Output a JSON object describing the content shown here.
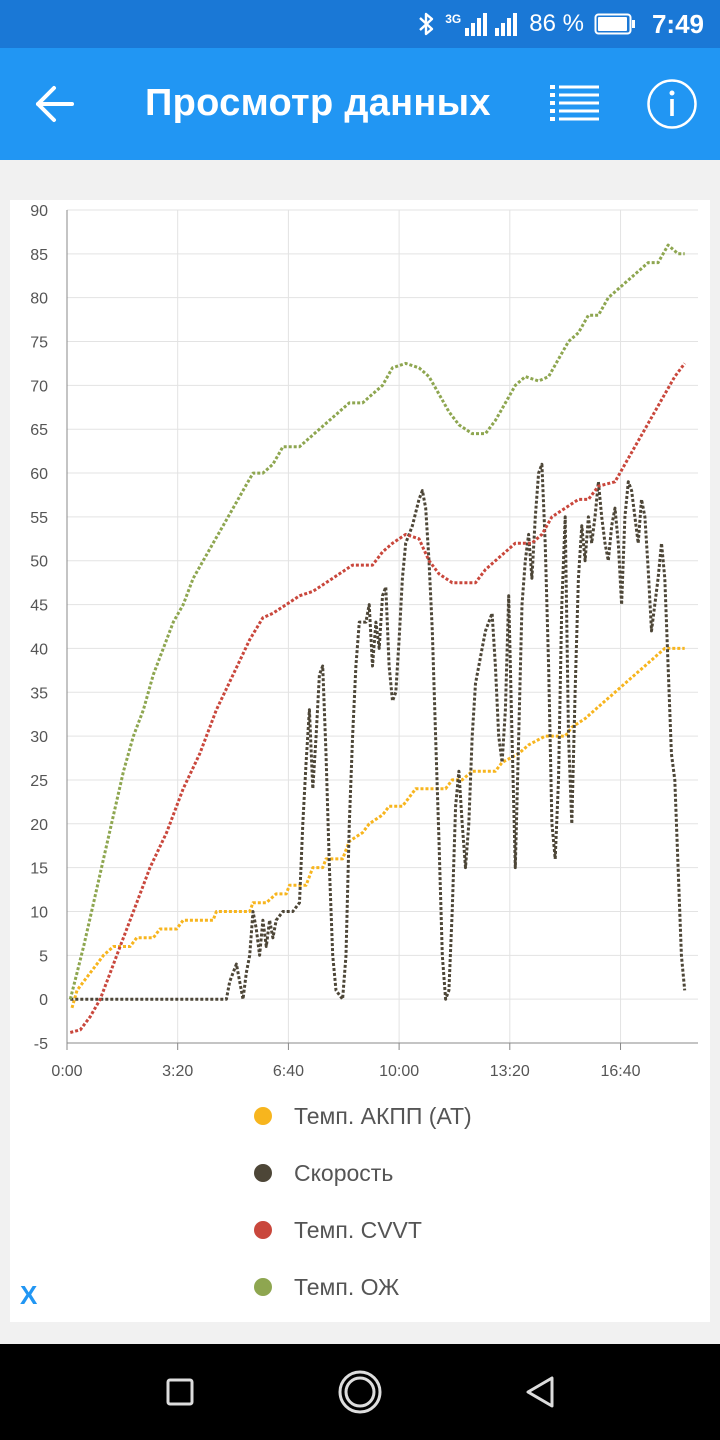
{
  "status_bar": {
    "network": "3G",
    "battery_percent": "86 %",
    "time": "7:49",
    "icons": [
      "bluetooth-icon",
      "signal-icon",
      "battery-icon"
    ]
  },
  "app_bar": {
    "title": "Просмотр данных",
    "icons": [
      "back-arrow-icon",
      "list-icon",
      "info-icon"
    ]
  },
  "colors": {
    "status_bar": "#1a78d6",
    "app_bar": "#2196f3",
    "series_at": "#f7b51e",
    "series_speed": "#4d4637",
    "series_cvvt": "#c9473c",
    "series_coolant": "#8ea650"
  },
  "chart_data": {
    "type": "line",
    "x_unit": "minutes",
    "xlim": [
      0,
      19
    ],
    "ylim": [
      -5,
      90
    ],
    "grid": true,
    "legend_placement": "bottom",
    "y_ticks": [
      90,
      85,
      80,
      75,
      70,
      65,
      60,
      55,
      50,
      45,
      40,
      35,
      30,
      25,
      20,
      15,
      10,
      5,
      0,
      -5
    ],
    "x_ticks": [
      {
        "value": 0,
        "label": "0:00"
      },
      {
        "value": 3.333,
        "label": "3:20"
      },
      {
        "value": 6.667,
        "label": "6:40"
      },
      {
        "value": 10,
        "label": "10:00"
      },
      {
        "value": 13.333,
        "label": "13:20"
      },
      {
        "value": 16.667,
        "label": "16:40"
      }
    ],
    "series": [
      {
        "name": "Темп. АКПП (АТ)",
        "color": "#f7b51e",
        "points": [
          [
            0.15,
            -1
          ],
          [
            0.3,
            1
          ],
          [
            0.5,
            2
          ],
          [
            0.7,
            3
          ],
          [
            0.9,
            4
          ],
          [
            1.1,
            5
          ],
          [
            1.4,
            6
          ],
          [
            1.9,
            6
          ],
          [
            2.1,
            7
          ],
          [
            2.6,
            7
          ],
          [
            2.8,
            8
          ],
          [
            3.3,
            8
          ],
          [
            3.5,
            9
          ],
          [
            4.4,
            9
          ],
          [
            4.5,
            10
          ],
          [
            5.5,
            10
          ],
          [
            5.6,
            11
          ],
          [
            6.0,
            11
          ],
          [
            6.3,
            12
          ],
          [
            6.6,
            12
          ],
          [
            6.7,
            13
          ],
          [
            7.2,
            13
          ],
          [
            7.4,
            15
          ],
          [
            7.7,
            15
          ],
          [
            7.8,
            16
          ],
          [
            8.3,
            16
          ],
          [
            8.5,
            18
          ],
          [
            8.9,
            19
          ],
          [
            9.1,
            20
          ],
          [
            9.5,
            21
          ],
          [
            9.7,
            22
          ],
          [
            10.1,
            22
          ],
          [
            10.3,
            23
          ],
          [
            10.5,
            24
          ],
          [
            11.4,
            24
          ],
          [
            11.6,
            25
          ],
          [
            11.9,
            25
          ],
          [
            12.2,
            26
          ],
          [
            12.9,
            26
          ],
          [
            13.1,
            27
          ],
          [
            13.6,
            28
          ],
          [
            13.9,
            29
          ],
          [
            14.4,
            30
          ],
          [
            15.0,
            30
          ],
          [
            15.2,
            31
          ],
          [
            15.6,
            32
          ],
          [
            15.9,
            33
          ],
          [
            16.2,
            34
          ],
          [
            16.5,
            35
          ],
          [
            16.8,
            36
          ],
          [
            17.1,
            37
          ],
          [
            17.4,
            38
          ],
          [
            17.7,
            39
          ],
          [
            18.0,
            40
          ],
          [
            18.6,
            40
          ]
        ]
      },
      {
        "name": "Скорость",
        "color": "#4d4637",
        "points": [
          [
            0.1,
            0
          ],
          [
            4.8,
            0
          ],
          [
            4.9,
            2
          ],
          [
            5.1,
            4
          ],
          [
            5.3,
            0
          ],
          [
            5.4,
            3
          ],
          [
            5.5,
            5
          ],
          [
            5.6,
            10
          ],
          [
            5.7,
            8
          ],
          [
            5.8,
            5
          ],
          [
            5.9,
            9
          ],
          [
            6.0,
            6
          ],
          [
            6.1,
            9
          ],
          [
            6.2,
            7
          ],
          [
            6.3,
            9
          ],
          [
            6.5,
            10
          ],
          [
            6.8,
            10
          ],
          [
            7.0,
            11
          ],
          [
            7.1,
            20
          ],
          [
            7.2,
            27
          ],
          [
            7.3,
            33
          ],
          [
            7.4,
            24
          ],
          [
            7.5,
            30
          ],
          [
            7.6,
            37
          ],
          [
            7.7,
            38
          ],
          [
            7.8,
            28
          ],
          [
            7.9,
            15
          ],
          [
            8.0,
            5
          ],
          [
            8.1,
            1
          ],
          [
            8.3,
            0
          ],
          [
            8.4,
            5
          ],
          [
            8.5,
            20
          ],
          [
            8.6,
            30
          ],
          [
            8.7,
            38
          ],
          [
            8.8,
            43
          ],
          [
            9.0,
            43
          ],
          [
            9.1,
            45
          ],
          [
            9.2,
            38
          ],
          [
            9.3,
            43
          ],
          [
            9.4,
            40
          ],
          [
            9.5,
            46
          ],
          [
            9.6,
            47
          ],
          [
            9.7,
            38
          ],
          [
            9.8,
            34
          ],
          [
            9.9,
            35
          ],
          [
            10.0,
            41
          ],
          [
            10.1,
            48
          ],
          [
            10.2,
            52
          ],
          [
            10.4,
            54
          ],
          [
            10.6,
            57
          ],
          [
            10.7,
            58
          ],
          [
            10.8,
            56
          ],
          [
            10.9,
            50
          ],
          [
            11.0,
            42
          ],
          [
            11.1,
            30
          ],
          [
            11.2,
            18
          ],
          [
            11.3,
            5
          ],
          [
            11.4,
            0
          ],
          [
            11.5,
            1
          ],
          [
            11.6,
            10
          ],
          [
            11.7,
            22
          ],
          [
            11.8,
            26
          ],
          [
            11.9,
            20
          ],
          [
            12.0,
            15
          ],
          [
            12.1,
            20
          ],
          [
            12.2,
            30
          ],
          [
            12.3,
            36
          ],
          [
            12.4,
            38
          ],
          [
            12.5,
            40
          ],
          [
            12.6,
            42
          ],
          [
            12.7,
            43
          ],
          [
            12.8,
            44
          ],
          [
            12.9,
            38
          ],
          [
            13.0,
            30
          ],
          [
            13.1,
            27
          ],
          [
            13.2,
            33
          ],
          [
            13.3,
            46
          ],
          [
            13.4,
            30
          ],
          [
            13.5,
            15
          ],
          [
            13.6,
            30
          ],
          [
            13.7,
            45
          ],
          [
            13.8,
            50
          ],
          [
            13.9,
            53
          ],
          [
            14.0,
            48
          ],
          [
            14.1,
            55
          ],
          [
            14.2,
            60
          ],
          [
            14.3,
            61
          ],
          [
            14.4,
            52
          ],
          [
            14.5,
            38
          ],
          [
            14.6,
            20
          ],
          [
            14.7,
            16
          ],
          [
            14.8,
            25
          ],
          [
            14.9,
            45
          ],
          [
            15.0,
            55
          ],
          [
            15.1,
            30
          ],
          [
            15.2,
            20
          ],
          [
            15.3,
            35
          ],
          [
            15.4,
            48
          ],
          [
            15.5,
            54
          ],
          [
            15.6,
            50
          ],
          [
            15.7,
            55
          ],
          [
            15.8,
            52
          ],
          [
            15.9,
            55
          ],
          [
            16.0,
            59
          ],
          [
            16.1,
            55
          ],
          [
            16.2,
            52
          ],
          [
            16.3,
            50
          ],
          [
            16.4,
            54
          ],
          [
            16.5,
            56
          ],
          [
            16.6,
            52
          ],
          [
            16.7,
            45
          ],
          [
            16.8,
            55
          ],
          [
            16.9,
            59
          ],
          [
            17.0,
            58
          ],
          [
            17.1,
            55
          ],
          [
            17.2,
            52
          ],
          [
            17.3,
            57
          ],
          [
            17.4,
            55
          ],
          [
            17.5,
            49
          ],
          [
            17.6,
            42
          ],
          [
            17.7,
            45
          ],
          [
            17.8,
            48
          ],
          [
            17.9,
            52
          ],
          [
            18.0,
            48
          ],
          [
            18.1,
            38
          ],
          [
            18.2,
            28
          ],
          [
            18.3,
            25
          ],
          [
            18.4,
            15
          ],
          [
            18.5,
            5
          ],
          [
            18.6,
            1
          ]
        ]
      },
      {
        "name": "Темп. CVVT",
        "color": "#c9473c",
        "points": [
          [
            0.1,
            -3.8
          ],
          [
            0.4,
            -3.5
          ],
          [
            0.7,
            -2
          ],
          [
            1.0,
            0
          ],
          [
            1.3,
            3
          ],
          [
            1.6,
            6
          ],
          [
            2.0,
            10
          ],
          [
            2.5,
            15
          ],
          [
            3.0,
            19
          ],
          [
            3.5,
            24
          ],
          [
            4.0,
            28
          ],
          [
            4.5,
            33
          ],
          [
            5.0,
            37
          ],
          [
            5.5,
            41
          ],
          [
            5.9,
            43.5
          ],
          [
            6.2,
            44
          ],
          [
            6.6,
            45
          ],
          [
            7.0,
            46
          ],
          [
            7.4,
            46.5
          ],
          [
            7.8,
            47.5
          ],
          [
            8.2,
            48.5
          ],
          [
            8.6,
            49.5
          ],
          [
            9.2,
            49.5
          ],
          [
            9.5,
            51
          ],
          [
            9.8,
            52
          ],
          [
            10.2,
            53
          ],
          [
            10.6,
            52.5
          ],
          [
            10.9,
            50
          ],
          [
            11.2,
            48.5
          ],
          [
            11.6,
            47.5
          ],
          [
            12.3,
            47.5
          ],
          [
            12.6,
            49
          ],
          [
            12.9,
            50
          ],
          [
            13.2,
            51
          ],
          [
            13.5,
            52
          ],
          [
            14.0,
            52
          ],
          [
            14.3,
            53
          ],
          [
            14.6,
            55
          ],
          [
            15.0,
            56
          ],
          [
            15.4,
            57
          ],
          [
            15.7,
            57
          ],
          [
            16.0,
            58.5
          ],
          [
            16.5,
            59
          ],
          [
            16.8,
            61
          ],
          [
            17.1,
            63
          ],
          [
            17.4,
            65
          ],
          [
            17.7,
            67
          ],
          [
            18.0,
            69
          ],
          [
            18.3,
            71
          ],
          [
            18.6,
            72.5
          ]
        ]
      },
      {
        "name": "Темп. ОЖ",
        "color": "#8ea650",
        "points": [
          [
            0.1,
            0
          ],
          [
            0.3,
            3
          ],
          [
            0.5,
            6
          ],
          [
            0.8,
            11
          ],
          [
            1.1,
            16
          ],
          [
            1.4,
            21
          ],
          [
            1.7,
            26
          ],
          [
            2.0,
            30
          ],
          [
            2.3,
            33
          ],
          [
            2.6,
            37
          ],
          [
            2.9,
            40
          ],
          [
            3.2,
            43
          ],
          [
            3.5,
            45
          ],
          [
            3.8,
            48
          ],
          [
            4.1,
            50
          ],
          [
            4.4,
            52
          ],
          [
            4.7,
            54
          ],
          [
            5.0,
            56
          ],
          [
            5.3,
            58
          ],
          [
            5.6,
            60
          ],
          [
            5.9,
            60
          ],
          [
            6.2,
            61
          ],
          [
            6.5,
            63
          ],
          [
            7.0,
            63
          ],
          [
            7.3,
            64
          ],
          [
            7.6,
            65
          ],
          [
            7.9,
            66
          ],
          [
            8.2,
            67
          ],
          [
            8.5,
            68
          ],
          [
            8.9,
            68
          ],
          [
            9.2,
            69
          ],
          [
            9.5,
            70
          ],
          [
            9.8,
            72
          ],
          [
            10.2,
            72.5
          ],
          [
            10.6,
            72
          ],
          [
            10.9,
            71
          ],
          [
            11.2,
            69
          ],
          [
            11.5,
            67
          ],
          [
            11.8,
            65.5
          ],
          [
            12.2,
            64.5
          ],
          [
            12.6,
            64.5
          ],
          [
            12.9,
            66
          ],
          [
            13.2,
            68
          ],
          [
            13.5,
            70
          ],
          [
            13.8,
            71
          ],
          [
            14.2,
            70.5
          ],
          [
            14.5,
            71
          ],
          [
            14.8,
            73
          ],
          [
            15.1,
            75
          ],
          [
            15.4,
            76
          ],
          [
            15.7,
            78
          ],
          [
            16.0,
            78
          ],
          [
            16.3,
            80
          ],
          [
            16.6,
            81
          ],
          [
            16.9,
            82
          ],
          [
            17.2,
            83
          ],
          [
            17.5,
            84
          ],
          [
            17.8,
            84
          ],
          [
            18.1,
            86
          ],
          [
            18.4,
            85
          ],
          [
            18.6,
            85
          ]
        ]
      }
    ]
  },
  "legend": {
    "items": [
      {
        "label": "Темп. АКПП (АТ)",
        "color": "#f7b51e"
      },
      {
        "label": "Скорость",
        "color": "#4d4637"
      },
      {
        "label": "Темп. CVVT",
        "color": "#c9473c"
      },
      {
        "label": "Темп. ОЖ",
        "color": "#8ea650"
      }
    ]
  },
  "close_button": {
    "label": "X"
  },
  "nav_bar": {
    "icons": [
      "recents-square-icon",
      "home-circle-icon",
      "back-triangle-icon"
    ]
  }
}
